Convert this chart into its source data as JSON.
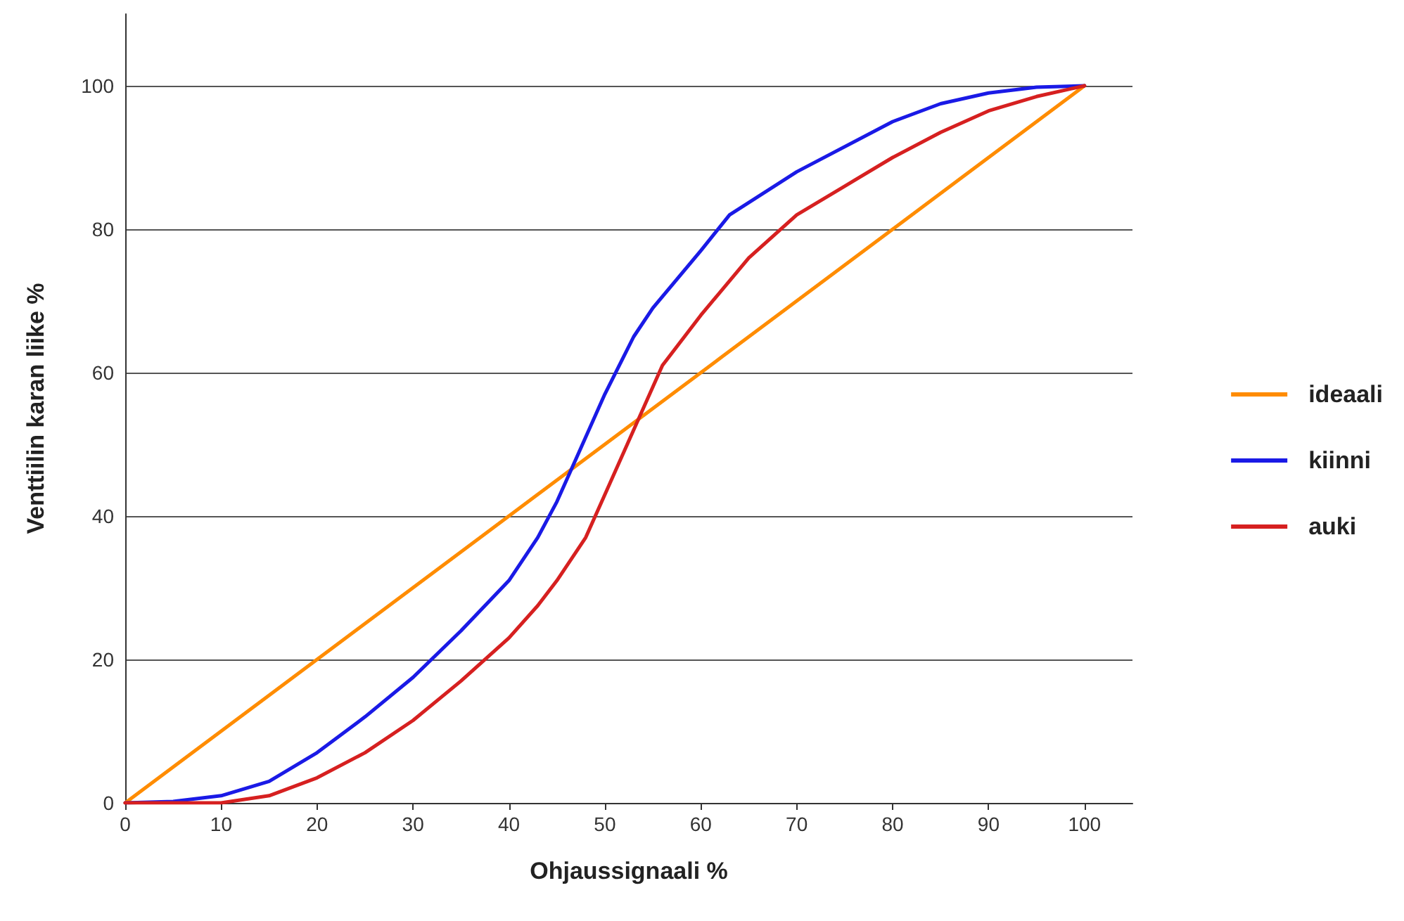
{
  "chart_data": {
    "type": "line",
    "xlabel": "Ohjaussignaali %",
    "ylabel": "Venttiilin karan liike %",
    "xlim": [
      0,
      105
    ],
    "ylim": [
      0,
      110
    ],
    "xticks": [
      0,
      10,
      20,
      30,
      40,
      50,
      60,
      70,
      80,
      90,
      100
    ],
    "yticks": [
      0,
      20,
      40,
      60,
      80,
      100
    ],
    "grid": "y",
    "legend": "right",
    "marker": "none",
    "line_style": "solid",
    "series": [
      {
        "name": "ideaali",
        "color": "#ff8c00",
        "x": [
          0,
          100
        ],
        "values": [
          0,
          100
        ]
      },
      {
        "name": "kiinni",
        "color": "#1a1ae6",
        "x": [
          0,
          5,
          10,
          15,
          20,
          25,
          30,
          35,
          40,
          43,
          45,
          47,
          50,
          53,
          55,
          60,
          63,
          70,
          80,
          85,
          90,
          95,
          100
        ],
        "values": [
          0,
          0.2,
          1,
          3,
          7,
          12,
          17.5,
          24,
          31,
          37,
          42,
          48,
          57,
          65,
          69,
          77,
          82,
          88,
          95,
          97.5,
          99,
          99.8,
          100
        ]
      },
      {
        "name": "auki",
        "color": "#d62020",
        "x": [
          0,
          5,
          10,
          15,
          20,
          25,
          30,
          35,
          40,
          43,
          45,
          48,
          50,
          52,
          54,
          56,
          60,
          65,
          70,
          75,
          80,
          85,
          90,
          95,
          100
        ],
        "values": [
          0,
          0,
          0,
          1,
          3.5,
          7,
          11.5,
          17,
          23,
          27.5,
          31,
          37,
          43,
          49,
          55,
          61,
          68,
          76,
          82,
          86,
          90,
          93.5,
          96.5,
          98.5,
          100
        ]
      }
    ]
  }
}
